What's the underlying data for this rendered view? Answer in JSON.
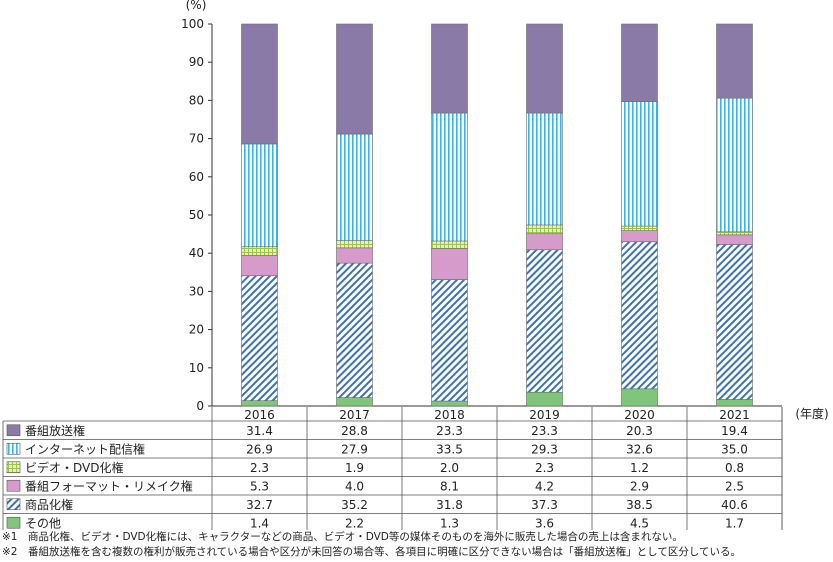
{
  "chart_data": {
    "type": "bar",
    "stacked": true,
    "unit_label": "(%)",
    "x_unit_label": "(年度)",
    "categories": [
      "2016",
      "2017",
      "2018",
      "2019",
      "2020",
      "2021"
    ],
    "ylim": [
      0,
      100
    ],
    "yticks": [
      0,
      10,
      20,
      30,
      40,
      50,
      60,
      70,
      80,
      90,
      100
    ],
    "series": [
      {
        "name": "その他",
        "values": [
          1.4,
          2.2,
          1.3,
          3.6,
          4.5,
          1.7
        ],
        "color": "#7fc67a",
        "pattern": "solid"
      },
      {
        "name": "商品化権",
        "values": [
          32.7,
          35.2,
          31.8,
          37.3,
          38.5,
          40.6
        ],
        "color": "#3a72b5",
        "pattern": "diagonal"
      },
      {
        "name": "番組フォーマット・リメイク権",
        "values": [
          5.3,
          4.0,
          8.1,
          4.2,
          2.9,
          2.5
        ],
        "color": "#d69bcb",
        "pattern": "solid"
      },
      {
        "name": "ビデオ・DVD化権",
        "values": [
          2.3,
          1.9,
          2.0,
          2.3,
          1.2,
          0.8
        ],
        "color": "#b7d66c",
        "pattern": "grid"
      },
      {
        "name": "インターネット配信権",
        "values": [
          26.9,
          27.9,
          33.5,
          29.3,
          32.6,
          35.0
        ],
        "color": "#3ab4e6",
        "pattern": "vertical"
      },
      {
        "name": "番組放送権",
        "values": [
          31.4,
          28.8,
          23.3,
          23.3,
          20.3,
          19.4
        ],
        "color": "#8a7aa8",
        "pattern": "solid"
      }
    ],
    "table_order": [
      "番組放送権",
      "インターネット配信権",
      "ビデオ・DVD化権",
      "番組フォーマット・リメイク権",
      "商品化権",
      "その他"
    ],
    "legend_placement": "table-left",
    "grid": false
  },
  "notes": [
    "※1　商品化権、ビデオ・DVD化権には、キャラクターなどの商品、ビデオ・DVD等の媒体そのものを海外に販売した場合の売上は含まれない。",
    "※2　番組放送権を含む複数の権利が販売されている場合や区分が未回答の場合等、各項目に明確に区分できない場合は「番組放送権」として区分している。"
  ]
}
